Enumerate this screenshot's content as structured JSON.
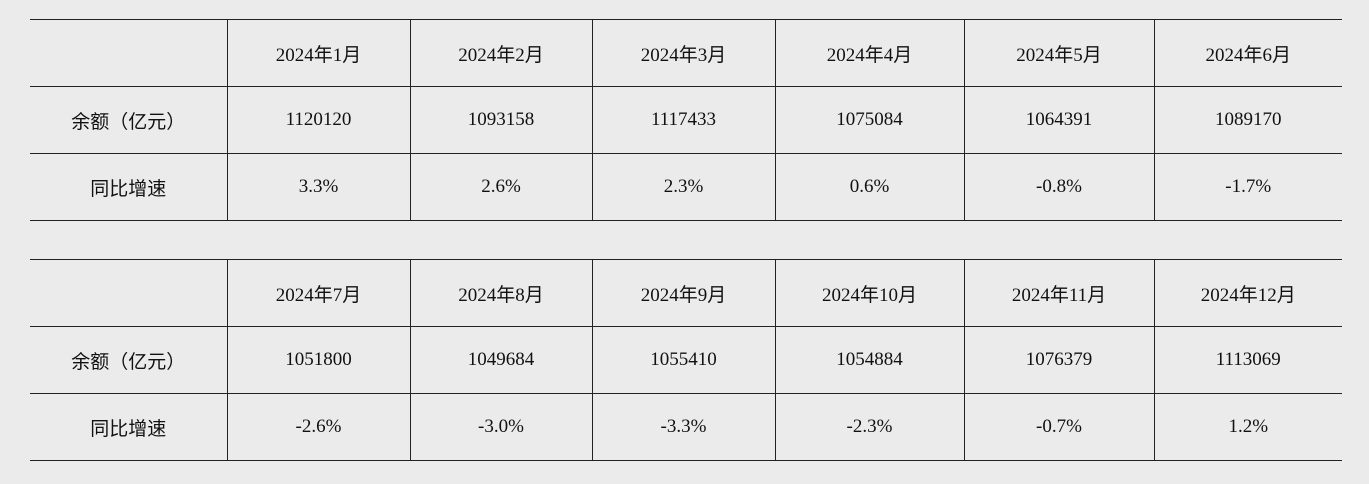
{
  "tables": [
    {
      "header": [
        "2024年1月",
        "2024年2月",
        "2024年3月",
        "2024年4月",
        "2024年5月",
        "2024年6月"
      ],
      "rows": [
        [
          "余额（亿元）",
          "1120120",
          "1093158",
          "1117433",
          "1075084",
          "1064391",
          "1089170"
        ],
        [
          "同比增速",
          "3.3%",
          "2.6%",
          "2.3%",
          "0.6%",
          "-0.8%",
          "-1.7%"
        ]
      ]
    },
    {
      "header": [
        "2024年7月",
        "2024年8月",
        "2024年9月",
        "2024年10月",
        "2024年11月",
        "2024年12月"
      ],
      "rows": [
        [
          "余额（亿元）",
          "1051800",
          "1049684",
          "1055410",
          "1054884",
          "1076379",
          "1113069"
        ],
        [
          "同比增速",
          "-2.6%",
          "-3.0%",
          "-3.3%",
          "-2.3%",
          "-0.7%",
          "1.2%"
        ]
      ]
    }
  ]
}
